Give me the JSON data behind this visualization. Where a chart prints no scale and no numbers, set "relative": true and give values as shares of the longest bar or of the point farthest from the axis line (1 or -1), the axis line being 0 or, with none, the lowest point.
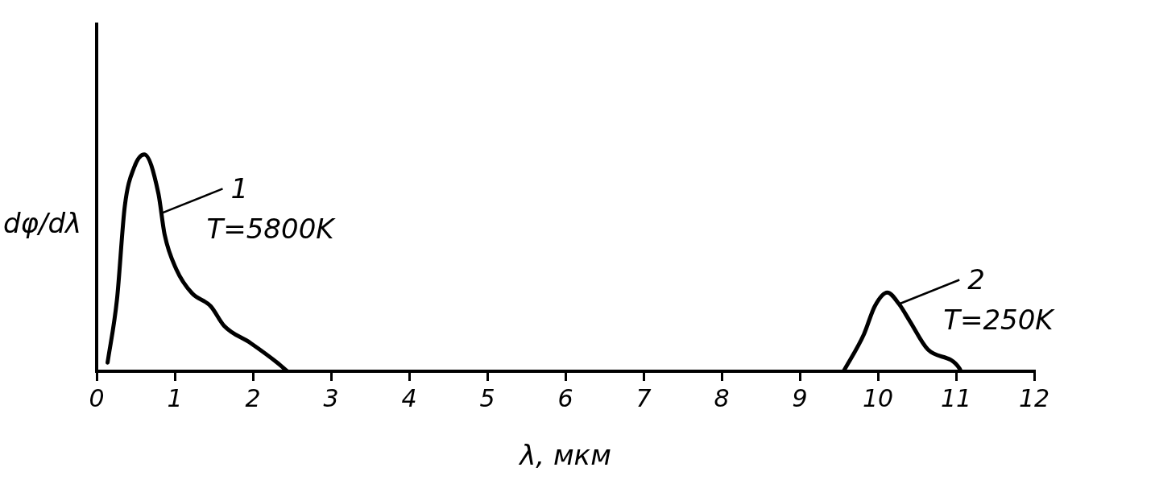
{
  "chart_data": {
    "type": "line",
    "relative": true,
    "xlabel": "λ, мкм",
    "ylabel": "dφ/dλ",
    "xlim": [
      0,
      12
    ],
    "xticks": [
      0,
      1,
      2,
      3,
      4,
      5,
      6,
      7,
      8,
      9,
      10,
      11,
      12
    ],
    "grid": false,
    "legend": false,
    "marker": "none",
    "line_style": "solid",
    "series": [
      {
        "color": "#000000",
        "x": [
          0.14,
          0.26,
          0.36,
          0.48,
          0.61,
          0.79,
          0.87,
          1.02,
          1.22,
          1.46,
          1.63,
          1.97,
          2.31,
          2.44
        ],
        "values": [
          0.04,
          0.33,
          0.76,
          0.94,
          1,
          0.82,
          0.63,
          0.47,
          0.36,
          0.3,
          0.21,
          0.13,
          0.04,
          0
        ]
      },
      {
        "color": "#000000",
        "x": [
          9.56,
          9.82,
          9.96,
          10.12,
          10.27,
          10.41,
          10.64,
          11.05,
          11.06
        ],
        "values": [
          0,
          0.17,
          0.3,
          0.363,
          0.31,
          0.23,
          0.1,
          0.01,
          0
        ]
      }
    ],
    "annotations": [
      {
        "text": "1",
        "x": 0.84,
        "y": 0.73
      },
      "T=5800K",
      {
        "text": "2",
        "x": 10.27,
        "y": 0.31
      },
      "T=250K"
    ]
  }
}
